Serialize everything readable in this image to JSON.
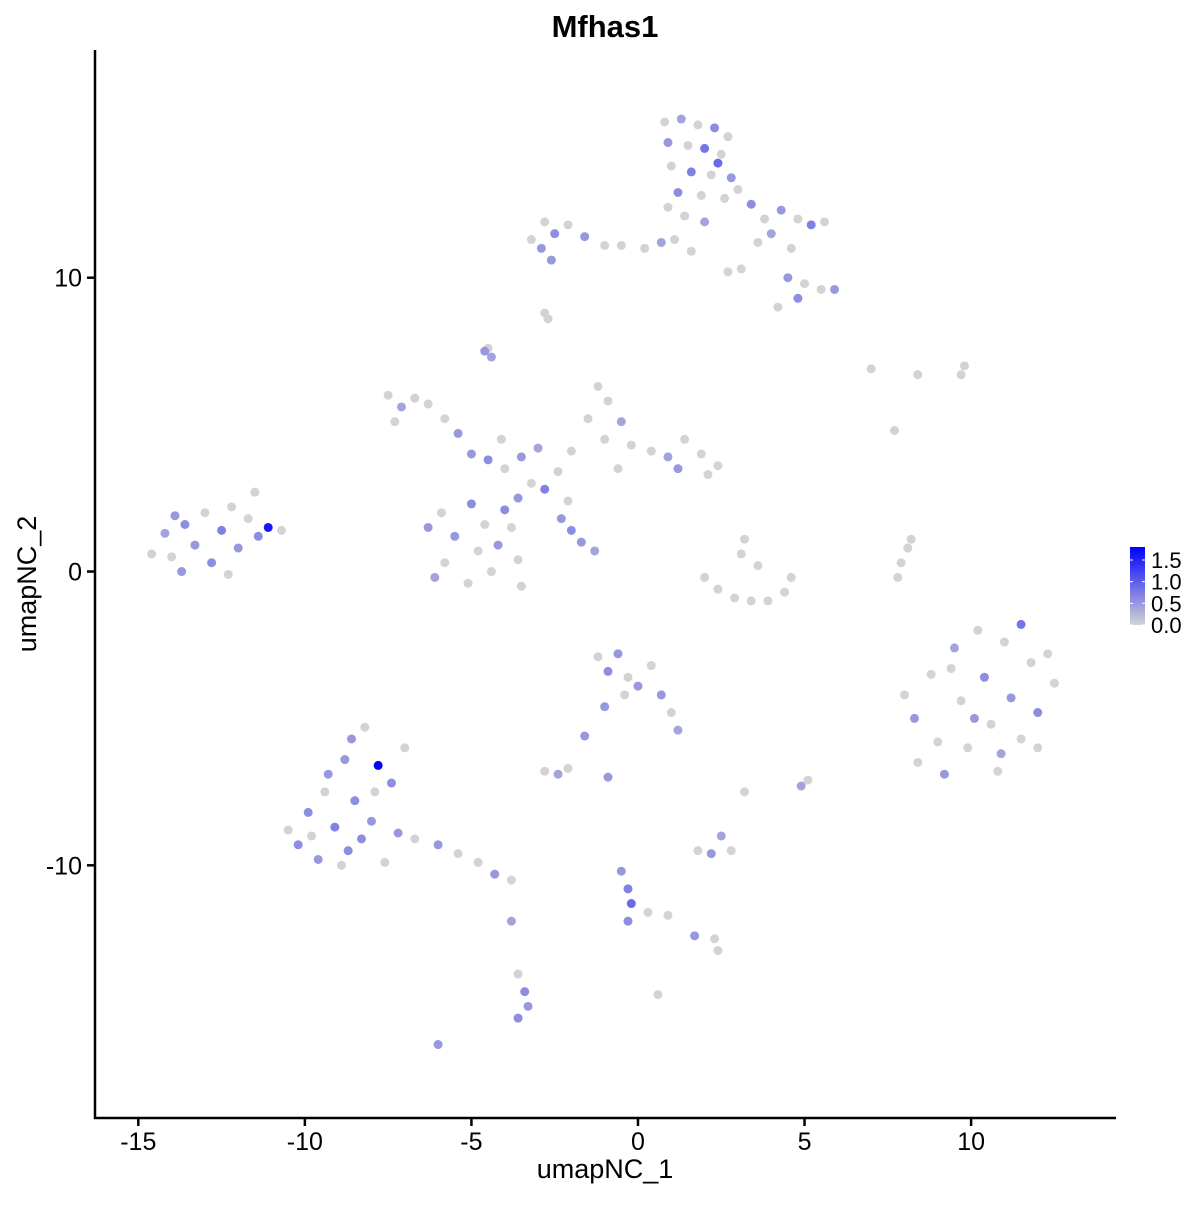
{
  "chart_data": {
    "type": "scatter",
    "title": "Mfhas1",
    "xlabel": "umapNC_1",
    "ylabel": "umapNC_2",
    "xlim": [
      -16.3,
      14.35
    ],
    "ylim": [
      -18.6,
      17.75
    ],
    "xticks": [
      -15,
      -10,
      -5,
      0,
      5,
      10
    ],
    "yticks": [
      -10,
      0,
      10
    ],
    "grid": false,
    "legend": {
      "placement": "right",
      "type": "colorbar",
      "ticks": [
        "1.5",
        "1.0",
        "0.5",
        "0.0"
      ],
      "tick_values": [
        1.5,
        1.0,
        0.5,
        0.0
      ],
      "range": [
        0,
        1.8
      ],
      "low_color": "#D3D3D3",
      "high_color": "#0000FF"
    },
    "point_fields": [
      "umapNC_1",
      "umapNC_2",
      "expression"
    ],
    "points": [
      [
        0.8,
        15.3,
        0
      ],
      [
        1.3,
        15.4,
        0.4
      ],
      [
        1.8,
        15.2,
        0
      ],
      [
        2.3,
        15.1,
        0.6
      ],
      [
        2.7,
        14.8,
        0
      ],
      [
        0.9,
        14.6,
        0.5
      ],
      [
        1.5,
        14.5,
        0
      ],
      [
        2.0,
        14.4,
        0.8
      ],
      [
        2.5,
        14.2,
        0
      ],
      [
        1.0,
        13.8,
        0
      ],
      [
        1.6,
        13.6,
        0.7
      ],
      [
        2.2,
        13.5,
        0
      ],
      [
        2.8,
        13.4,
        0.5
      ],
      [
        1.2,
        12.9,
        0.6
      ],
      [
        1.9,
        12.8,
        0
      ],
      [
        2.6,
        12.7,
        0
      ],
      [
        1.4,
        12.1,
        0
      ],
      [
        2.0,
        11.9,
        0.4
      ],
      [
        1.1,
        11.3,
        0
      ],
      [
        1.6,
        10.9,
        0
      ],
      [
        0.9,
        12.4,
        0
      ],
      [
        2.4,
        13.9,
        0.9
      ],
      [
        3.0,
        13.0,
        0
      ],
      [
        3.4,
        12.5,
        0.6
      ],
      [
        3.8,
        12.0,
        0
      ],
      [
        4.3,
        12.3,
        0.5
      ],
      [
        4.8,
        12.0,
        0
      ],
      [
        5.2,
        11.8,
        0.7
      ],
      [
        5.6,
        11.9,
        0
      ],
      [
        3.6,
        11.2,
        0
      ],
      [
        4.0,
        11.5,
        0.4
      ],
      [
        4.6,
        11.0,
        0
      ],
      [
        4.5,
        10.0,
        0.5
      ],
      [
        5.0,
        9.8,
        0
      ],
      [
        5.5,
        9.6,
        0
      ],
      [
        5.9,
        9.6,
        0.5
      ],
      [
        4.8,
        9.3,
        0.6
      ],
      [
        4.2,
        9.0,
        0
      ],
      [
        3.1,
        10.3,
        0
      ],
      [
        2.7,
        10.2,
        0
      ],
      [
        -3.2,
        11.3,
        0
      ],
      [
        -2.8,
        11.9,
        0
      ],
      [
        -2.5,
        11.5,
        0.6
      ],
      [
        -2.9,
        11.0,
        0.5
      ],
      [
        -2.1,
        11.8,
        0
      ],
      [
        -1.6,
        11.4,
        0.5
      ],
      [
        -1.0,
        11.1,
        0
      ],
      [
        -0.5,
        11.1,
        0
      ],
      [
        0.2,
        11.0,
        0
      ],
      [
        0.7,
        11.2,
        0.4
      ],
      [
        -2.6,
        10.6,
        0.5
      ],
      [
        -2.8,
        8.8,
        0
      ],
      [
        -2.7,
        8.6,
        0
      ],
      [
        -4.6,
        7.5,
        0.5
      ],
      [
        -4.4,
        7.3,
        0.4
      ],
      [
        -4.5,
        7.6,
        0
      ],
      [
        -7.5,
        6.0,
        0
      ],
      [
        -7.1,
        5.6,
        0.4
      ],
      [
        -6.7,
        5.9,
        0
      ],
      [
        -6.3,
        5.7,
        0
      ],
      [
        -5.8,
        5.2,
        0
      ],
      [
        -5.4,
        4.7,
        0.5
      ],
      [
        -7.3,
        5.1,
        0
      ],
      [
        -4.5,
        3.8,
        0.6
      ],
      [
        -4.0,
        3.5,
        0
      ],
      [
        -3.5,
        3.9,
        0.5
      ],
      [
        -3.2,
        3.0,
        0
      ],
      [
        -2.8,
        2.8,
        0.7
      ],
      [
        -2.4,
        3.4,
        0
      ],
      [
        -3.6,
        2.5,
        0.5
      ],
      [
        -2.1,
        2.4,
        0
      ],
      [
        -4.1,
        4.5,
        0
      ],
      [
        -3.0,
        4.2,
        0.4
      ],
      [
        -5.0,
        4.0,
        0.5
      ],
      [
        -2.0,
        4.1,
        0
      ],
      [
        -1.5,
        5.2,
        0
      ],
      [
        -1.2,
        6.3,
        0
      ],
      [
        -0.9,
        5.8,
        0
      ],
      [
        -0.5,
        5.1,
        0.4
      ],
      [
        -1.0,
        4.5,
        0
      ],
      [
        -0.2,
        4.3,
        0
      ],
      [
        0.4,
        4.1,
        0
      ],
      [
        0.9,
        3.9,
        0.4
      ],
      [
        1.4,
        4.5,
        0
      ],
      [
        1.9,
        4.0,
        0
      ],
      [
        2.4,
        3.6,
        0
      ],
      [
        2.1,
        3.3,
        0
      ],
      [
        -0.6,
        3.5,
        0
      ],
      [
        1.2,
        3.5,
        0.5
      ],
      [
        -6.3,
        1.5,
        0.5
      ],
      [
        -5.9,
        2.0,
        0
      ],
      [
        -5.5,
        1.2,
        0.5
      ],
      [
        -5.0,
        2.3,
        0.6
      ],
      [
        -4.6,
        1.6,
        0
      ],
      [
        -4.2,
        0.9,
        0.5
      ],
      [
        -3.8,
        1.5,
        0
      ],
      [
        -3.6,
        0.4,
        0
      ],
      [
        -4.4,
        0.0,
        0
      ],
      [
        -5.1,
        -0.4,
        0
      ],
      [
        -5.8,
        0.3,
        0
      ],
      [
        -6.1,
        -0.2,
        0.4
      ],
      [
        -4.8,
        0.7,
        0
      ],
      [
        -4.0,
        2.1,
        0.6
      ],
      [
        -3.5,
        -0.5,
        0
      ],
      [
        -2.3,
        1.8,
        0.5
      ],
      [
        -2.0,
        1.4,
        0.6
      ],
      [
        -1.7,
        1.0,
        0.5
      ],
      [
        -1.3,
        0.7,
        0.4
      ],
      [
        -14.6,
        0.6,
        0
      ],
      [
        -14.2,
        1.3,
        0.4
      ],
      [
        -14.0,
        0.5,
        0
      ],
      [
        -13.6,
        1.6,
        0.6
      ],
      [
        -13.3,
        0.9,
        0.5
      ],
      [
        -13.0,
        2.0,
        0
      ],
      [
        -12.8,
        0.3,
        0.6
      ],
      [
        -12.5,
        1.4,
        0.7
      ],
      [
        -12.2,
        2.2,
        0
      ],
      [
        -12.0,
        0.8,
        0.5
      ],
      [
        -11.7,
        1.8,
        0
      ],
      [
        -11.4,
        1.2,
        0.6
      ],
      [
        -11.1,
        1.5,
        1.6
      ],
      [
        -10.7,
        1.4,
        0
      ],
      [
        -11.5,
        2.7,
        0
      ],
      [
        -13.7,
        0.0,
        0.5
      ],
      [
        -12.3,
        -0.1,
        0
      ],
      [
        -13.9,
        1.9,
        0.5
      ],
      [
        2.0,
        -0.2,
        0
      ],
      [
        2.4,
        -0.6,
        0
      ],
      [
        2.9,
        -0.9,
        0
      ],
      [
        3.4,
        -1.0,
        0
      ],
      [
        3.9,
        -1.0,
        0
      ],
      [
        4.4,
        -0.7,
        0
      ],
      [
        4.6,
        -0.2,
        0
      ],
      [
        3.1,
        0.6,
        0
      ],
      [
        3.2,
        1.1,
        0
      ],
      [
        3.6,
        0.2,
        0
      ],
      [
        7.8,
        -0.2,
        0
      ],
      [
        7.9,
        0.3,
        0
      ],
      [
        8.1,
        0.8,
        0
      ],
      [
        8.2,
        1.1,
        0
      ],
      [
        8.0,
        -4.2,
        0
      ],
      [
        8.3,
        -5.0,
        0.5
      ],
      [
        8.4,
        -6.5,
        0
      ],
      [
        8.8,
        -3.5,
        0
      ],
      [
        9.0,
        -5.8,
        0
      ],
      [
        9.2,
        -6.9,
        0.5
      ],
      [
        9.5,
        -2.6,
        0.4
      ],
      [
        9.7,
        -4.4,
        0
      ],
      [
        9.9,
        -6.0,
        0
      ],
      [
        10.2,
        -2.0,
        0
      ],
      [
        10.4,
        -3.6,
        0.6
      ],
      [
        10.6,
        -5.2,
        0
      ],
      [
        10.8,
        -6.8,
        0
      ],
      [
        11.0,
        -2.4,
        0
      ],
      [
        11.2,
        -4.3,
        0.5
      ],
      [
        11.5,
        -5.7,
        0
      ],
      [
        11.8,
        -3.1,
        0
      ],
      [
        12.0,
        -4.8,
        0.6
      ],
      [
        12.3,
        -2.8,
        0
      ],
      [
        12.5,
        -3.8,
        0
      ],
      [
        11.5,
        -1.8,
        0.8
      ],
      [
        10.1,
        -5.0,
        0.5
      ],
      [
        9.4,
        -3.3,
        0
      ],
      [
        10.9,
        -6.2,
        0.4
      ],
      [
        12.0,
        -6.0,
        0
      ],
      [
        -10.5,
        -8.8,
        0
      ],
      [
        -10.2,
        -9.3,
        0.6
      ],
      [
        -9.9,
        -8.2,
        0.6
      ],
      [
        -9.6,
        -9.8,
        0.5
      ],
      [
        -9.4,
        -7.5,
        0
      ],
      [
        -9.1,
        -8.7,
        0.7
      ],
      [
        -8.8,
        -6.4,
        0.5
      ],
      [
        -8.7,
        -9.5,
        0.6
      ],
      [
        -8.5,
        -7.8,
        0.6
      ],
      [
        -8.2,
        -5.3,
        0
      ],
      [
        -8.0,
        -8.5,
        0.5
      ],
      [
        -7.8,
        -6.6,
        1.8
      ],
      [
        -7.6,
        -9.9,
        0
      ],
      [
        -7.4,
        -7.2,
        0.6
      ],
      [
        -7.2,
        -8.9,
        0.5
      ],
      [
        -7.0,
        -6.0,
        0
      ],
      [
        -8.9,
        -10.0,
        0
      ],
      [
        -9.3,
        -6.9,
        0.5
      ],
      [
        -8.3,
        -9.1,
        0.6
      ],
      [
        -6.7,
        -9.1,
        0
      ],
      [
        -6.0,
        -9.3,
        0.5
      ],
      [
        -5.4,
        -9.6,
        0
      ],
      [
        -4.8,
        -9.9,
        0
      ],
      [
        -4.3,
        -10.3,
        0.5
      ],
      [
        -3.8,
        -10.5,
        0
      ],
      [
        -8.6,
        -5.7,
        0.5
      ],
      [
        -7.9,
        -7.5,
        0
      ],
      [
        -9.8,
        -9.0,
        0
      ],
      [
        -1.2,
        -2.9,
        0
      ],
      [
        -0.9,
        -3.4,
        0.6
      ],
      [
        -0.6,
        -2.8,
        0.5
      ],
      [
        -0.3,
        -3.6,
        0
      ],
      [
        0.0,
        -3.9,
        0.5
      ],
      [
        0.4,
        -3.2,
        0
      ],
      [
        0.7,
        -4.2,
        0.5
      ],
      [
        1.0,
        -4.8,
        0
      ],
      [
        1.2,
        -5.4,
        0.4
      ],
      [
        -1.0,
        -4.6,
        0.5
      ],
      [
        -1.6,
        -5.6,
        0.5
      ],
      [
        -0.4,
        -4.2,
        0
      ],
      [
        -2.8,
        -6.8,
        0
      ],
      [
        -2.4,
        -6.9,
        0.4
      ],
      [
        -2.1,
        -6.7,
        0
      ],
      [
        -0.9,
        -7.0,
        0.5
      ],
      [
        1.8,
        -9.5,
        0
      ],
      [
        2.2,
        -9.6,
        0.5
      ],
      [
        2.5,
        -9.0,
        0.4
      ],
      [
        2.8,
        -9.5,
        0
      ],
      [
        3.2,
        -7.5,
        0
      ],
      [
        4.9,
        -7.3,
        0.4
      ],
      [
        5.1,
        -7.1,
        0
      ],
      [
        -0.5,
        -10.2,
        0.5
      ],
      [
        -0.3,
        -10.8,
        0.7
      ],
      [
        -0.2,
        -11.3,
        0.9
      ],
      [
        -0.3,
        -11.9,
        0.6
      ],
      [
        0.3,
        -11.6,
        0
      ],
      [
        0.9,
        -11.7,
        0
      ],
      [
        1.7,
        -12.4,
        0.5
      ],
      [
        2.3,
        -12.5,
        0
      ],
      [
        2.4,
        -12.9,
        0
      ],
      [
        -3.6,
        -13.7,
        0
      ],
      [
        -3.4,
        -14.3,
        0.6
      ],
      [
        -3.3,
        -14.8,
        0.5
      ],
      [
        -3.6,
        -15.2,
        0.6
      ],
      [
        -3.8,
        -11.9,
        0.4
      ],
      [
        -6.0,
        -16.1,
        0.5
      ],
      [
        7.0,
        6.9,
        0
      ],
      [
        8.4,
        6.7,
        0
      ],
      [
        9.8,
        7.0,
        0
      ],
      [
        9.7,
        6.7,
        0
      ],
      [
        7.7,
        4.8,
        0
      ],
      [
        0.6,
        -14.4,
        0
      ]
    ]
  }
}
